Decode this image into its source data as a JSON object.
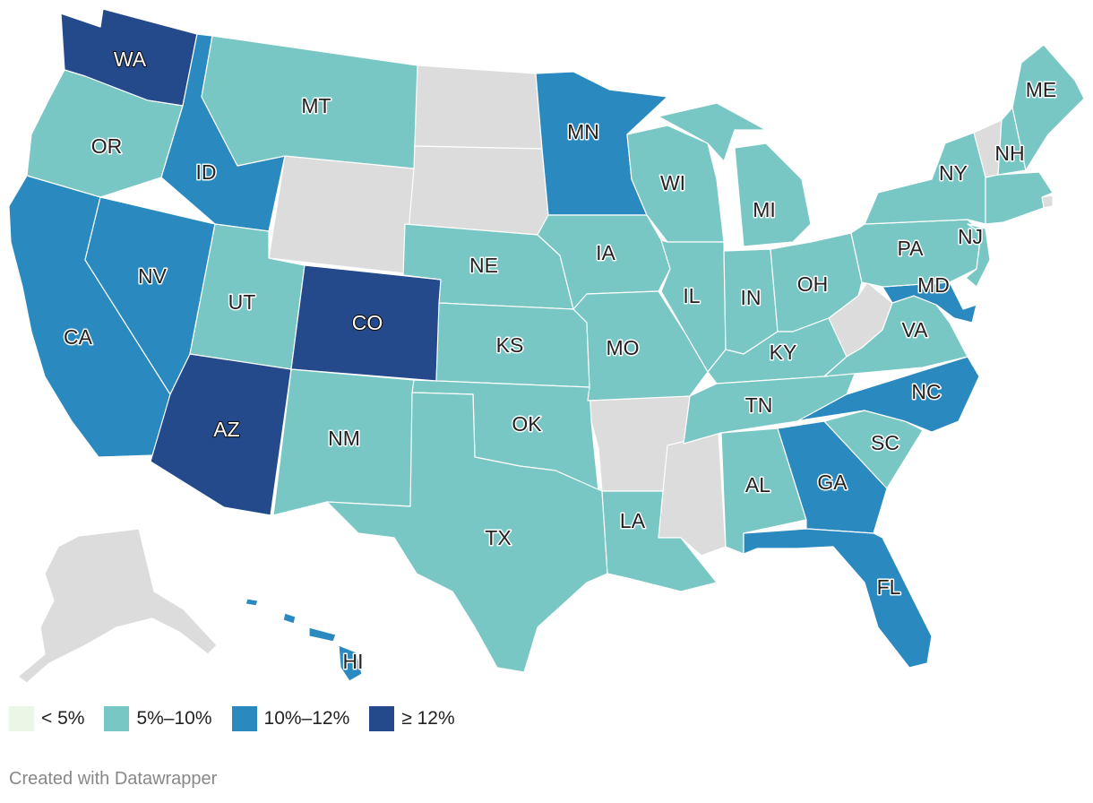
{
  "colors": {
    "lt5": "#ebf6e6",
    "b5_10": "#78c7c5",
    "b10_12": "#2a89bf",
    "ge12": "#244a8c",
    "nodata": "#dcdcdc"
  },
  "legend": [
    {
      "label": "< 5%",
      "color": "#ebf6e6"
    },
    {
      "label": "5%–10%",
      "color": "#78c7c5"
    },
    {
      "label": "10%–12%",
      "color": "#2a89bf"
    },
    {
      "label": "≥ 12%",
      "color": "#244a8c"
    }
  ],
  "states": {
    "WA": {
      "label": "WA",
      "bin": "≥ 12%"
    },
    "OR": {
      "label": "OR",
      "bin": "5%–10%"
    },
    "CA": {
      "label": "CA",
      "bin": "10%–12%"
    },
    "NV": {
      "label": "NV",
      "bin": "10%–12%"
    },
    "ID": {
      "label": "ID",
      "bin": "10%–12%"
    },
    "MT": {
      "label": "MT",
      "bin": "5%–10%"
    },
    "UT": {
      "label": "UT",
      "bin": "5%–10%"
    },
    "AZ": {
      "label": "AZ",
      "bin": "≥ 12%"
    },
    "CO": {
      "label": "CO",
      "bin": "≥ 12%"
    },
    "NM": {
      "label": "NM",
      "bin": "5%–10%"
    },
    "NE": {
      "label": "NE",
      "bin": "5%–10%"
    },
    "KS": {
      "label": "KS",
      "bin": "5%–10%"
    },
    "OK": {
      "label": "OK",
      "bin": "5%–10%"
    },
    "TX": {
      "label": "TX",
      "bin": "5%–10%"
    },
    "MN": {
      "label": "MN",
      "bin": "10%–12%"
    },
    "IA": {
      "label": "IA",
      "bin": "5%–10%"
    },
    "MO": {
      "label": "MO",
      "bin": "5%–10%"
    },
    "LA": {
      "label": "LA",
      "bin": "5%–10%"
    },
    "WI": {
      "label": "WI",
      "bin": "5%–10%"
    },
    "IL": {
      "label": "IL",
      "bin": "5%–10%"
    },
    "MI": {
      "label": "MI",
      "bin": "5%–10%"
    },
    "IN": {
      "label": "IN",
      "bin": "5%–10%"
    },
    "OH": {
      "label": "OH",
      "bin": "5%–10%"
    },
    "KY": {
      "label": "KY",
      "bin": "5%–10%"
    },
    "TN": {
      "label": "TN",
      "bin": "5%–10%"
    },
    "AL": {
      "label": "AL",
      "bin": "5%–10%"
    },
    "GA": {
      "label": "GA",
      "bin": "10%–12%"
    },
    "FL": {
      "label": "FL",
      "bin": "10%–12%"
    },
    "SC": {
      "label": "SC",
      "bin": "5%–10%"
    },
    "NC": {
      "label": "NC",
      "bin": "10%–12%"
    },
    "VA": {
      "label": "VA",
      "bin": "5%–10%"
    },
    "MD": {
      "label": "MD",
      "bin": "10%–12%"
    },
    "PA": {
      "label": "PA",
      "bin": "5%–10%"
    },
    "NJ": {
      "label": "NJ",
      "bin": "5%–10%"
    },
    "NY": {
      "label": "NY",
      "bin": "5%–10%"
    },
    "NH": {
      "label": "NH",
      "bin": "5%–10%"
    },
    "ME": {
      "label": "ME",
      "bin": "5%–10%"
    },
    "HI": {
      "label": "HI",
      "bin": "10%–12%"
    }
  },
  "credit": "Created with Datawrapper"
}
